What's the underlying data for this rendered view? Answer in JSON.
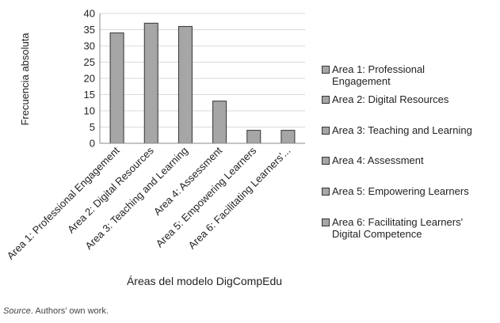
{
  "chart_data": {
    "type": "bar",
    "categories": [
      "Area 1: Professional Engagement",
      "Area 2: Digital Resources",
      "Area 3: Teaching and Learning",
      "Area 4: Assessment",
      "Area 5: Empowering Learners",
      "Area 6: Facilitating Learners'..."
    ],
    "values": [
      34,
      37,
      36,
      13,
      4,
      4
    ],
    "xlabel": "Áreas del modelo DigCompEdu",
    "ylabel": "Frecuencia absoluta",
    "ylim": [
      0,
      40
    ],
    "yticks": [
      0,
      5,
      10,
      15,
      20,
      25,
      30,
      35,
      40
    ],
    "grid": true,
    "legend_position": "right",
    "bar_color": "#a6a6a6",
    "bar_edge_color": "#333333",
    "grid_color": "#d9d9d9"
  },
  "legend": {
    "items": [
      [
        "Area 1: Professional",
        "Engagement"
      ],
      [
        "Area 2: Digital Resources"
      ],
      [
        "Area 3: Teaching and Learning"
      ],
      [
        "Area 4: Assessment"
      ],
      [
        "Area 5: Empowering Learners"
      ],
      [
        "Area 6: Facilitating Learners'",
        "Digital Competence"
      ]
    ]
  },
  "source": {
    "label": "Source",
    "text": ". Authors’ own work."
  }
}
